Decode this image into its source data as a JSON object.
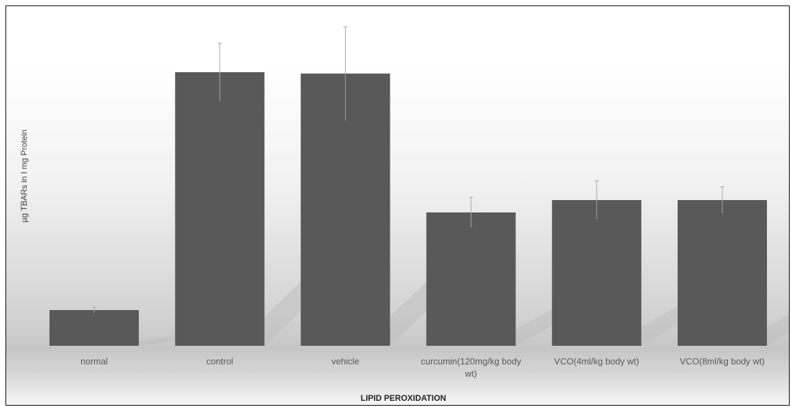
{
  "chart_data": {
    "type": "bar",
    "title": "",
    "xlabel": "LIPID PEROXIDATION",
    "ylabel": "µg TBARs in I mg Protein",
    "categories": [
      "normal",
      "control",
      "vehicle",
      "curcumin(120mg/kg body wt)",
      "VCO(4ml/kg body wt)",
      "VCO(8ml/kg body wt)"
    ],
    "series": [
      {
        "values": [
          1.3,
          9.95,
          9.9,
          4.85,
          5.3,
          5.3
        ],
        "errors": [
          0.1,
          1.05,
          1.7,
          0.55,
          0.7,
          0.48
        ]
      }
    ],
    "ylim": [
      0,
      12
    ],
    "grid": false,
    "legend": "none",
    "colors": {
      "bar": "#595959",
      "error_bar": "#a6a6a6",
      "label": "#595959"
    }
  }
}
